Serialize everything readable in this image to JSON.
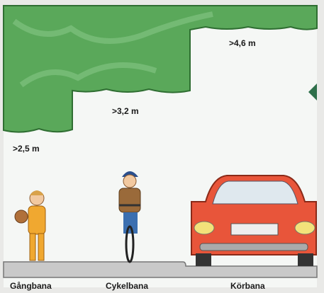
{
  "heights": [
    ">2,5 m",
    ">3,2 m",
    ">4,6 m"
  ],
  "lanes": [
    "Gångbana",
    "Cykelbana",
    "Körbana"
  ]
}
